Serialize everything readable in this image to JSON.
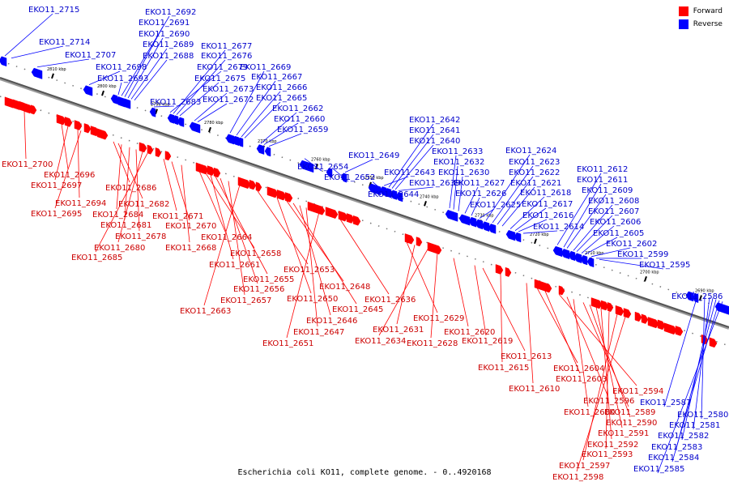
{
  "legend": [
    {
      "label": "Forward",
      "color": "#ff0000"
    },
    {
      "label": "Reverse",
      "color": "#0000ff"
    }
  ],
  "caption": "Escherichia coli KO11, complete genome. - 0..4920168",
  "colors": {
    "forward": "#ff0000",
    "reverse": "#0000ff",
    "forward_label": "#cc0000",
    "reverse_label": "#0000cc",
    "backbone": "#555555"
  },
  "ticks": [
    "2810 kbp",
    "2800 kbp",
    "2790 kbp",
    "2780 kbp",
    "2770 kbp",
    "2760 kbp",
    "2750 kbp",
    "2740 kbp",
    "2730 kbp",
    "2720 kbp",
    "2710 kbp",
    "2700 kbp",
    "2690 kbp"
  ],
  "reverse_labels": [
    "EKO11_2715",
    "EKO11_2714",
    "EKO11_2707",
    "EKO11_2698",
    "EKO11_2693",
    "EKO11_2692",
    "EKO11_2691",
    "EKO11_2690",
    "EKO11_2689",
    "EKO11_2688",
    "EKO11_2683",
    "EKO11_2679",
    "EKO11_2677",
    "EKO11_2676",
    "EKO11_2675",
    "EKO11_2673",
    "EKO11_2672",
    "EKO11_2669",
    "EKO11_2667",
    "EKO11_2666",
    "EKO11_2665",
    "EKO11_2662",
    "EKO11_2660",
    "EKO11_2659",
    "EKO11_2654",
    "EKO11_2652",
    "EKO11_2649",
    "EKO11_2644",
    "EKO11_2643",
    "EKO11_2642",
    "EKO11_2641",
    "EKO11_2640",
    "EKO11_2639",
    "EKO11_2633",
    "EKO11_2632",
    "EKO11_2630",
    "EKO11_2627",
    "EKO11_2626",
    "EKO11_2625",
    "EKO11_2624",
    "EKO11_2623",
    "EKO11_2622",
    "EKO11_2621",
    "EKO11_2618",
    "EKO11_2617",
    "EKO11_2616",
    "EKO11_2614",
    "EKO11_2612",
    "EKO11_2611",
    "EKO11_2609",
    "EKO11_2608",
    "EKO11_2607",
    "EKO11_2606",
    "EKO11_2605",
    "EKO11_2602",
    "EKO11_2599",
    "EKO11_2595",
    "EKO11_2586",
    "EKO11_2587",
    "EKO11_2580",
    "EKO11_2581",
    "EKO11_2582",
    "EKO11_2583",
    "EKO11_2584",
    "EKO11_2585"
  ],
  "forward_labels": [
    "EKO11_2700",
    "EKO11_2696",
    "EKO11_2697",
    "EKO11_2694",
    "EKO11_2695",
    "EKO11_2686",
    "EKO11_2682",
    "EKO11_2684",
    "EKO11_2681",
    "EKO11_2678",
    "EKO11_2680",
    "EKO11_2685",
    "EKO11_2671",
    "EKO11_2670",
    "EKO11_2668",
    "EKO11_2664",
    "EKO11_2658",
    "EKO11_2661",
    "EKO11_2655",
    "EKO11_2656",
    "EKO11_2657",
    "EKO11_2663",
    "EKO11_2653",
    "EKO11_2650",
    "EKO11_2648",
    "EKO11_2645",
    "EKO11_2646",
    "EKO11_2647",
    "EKO11_2651",
    "EKO11_2636",
    "EKO11_2629",
    "EKO11_2631",
    "EKO11_2634",
    "EKO11_2628",
    "EKO11_2620",
    "EKO11_2619",
    "EKO11_2613",
    "EKO11_2615",
    "EKO11_2610",
    "EKO11_2604",
    "EKO11_2603",
    "EKO11_2594",
    "EKO11_2596",
    "EKO11_2600",
    "EKO11_2589",
    "EKO11_2590",
    "EKO11_2591",
    "EKO11_2592",
    "EKO11_2593",
    "EKO11_2597",
    "EKO11_2598"
  ]
}
